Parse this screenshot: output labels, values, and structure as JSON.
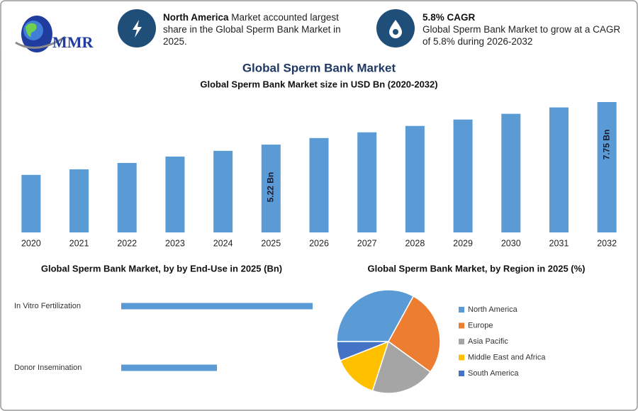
{
  "header": {
    "logo": "MMR",
    "cards": [
      {
        "highlight": "North America",
        "text": "Market accounted largest share in the Global Sperm Bank Market in 2025."
      },
      {
        "highlight": "5.8% CAGR",
        "text": "Global Sperm Bank Market to grow at a CAGR of 5.8% during 2026-2032"
      }
    ]
  },
  "title": "Global Sperm Bank Market",
  "chart_data": [
    {
      "type": "bar",
      "title": "Global Sperm Bank Market size in USD Bn (2020-2032)",
      "categories": [
        "2020",
        "2021",
        "2022",
        "2023",
        "2024",
        "2025",
        "2026",
        "2027",
        "2028",
        "2029",
        "2030",
        "2031",
        "2032"
      ],
      "values": [
        3.42,
        3.75,
        4.13,
        4.51,
        4.85,
        5.22,
        5.61,
        5.95,
        6.33,
        6.71,
        7.05,
        7.43,
        7.75
      ],
      "value_labels": [
        null,
        null,
        null,
        null,
        null,
        "5.22 Bn",
        null,
        null,
        null,
        null,
        null,
        null,
        "7.75 Bn"
      ],
      "color": "#5b9bd5"
    },
    {
      "type": "hbar",
      "title": "Global Sperm Bank Market, by by End-Use in 2025 (Bn)",
      "categories": [
        "In Vitro Fertilization",
        "Donor Insemination"
      ],
      "values": [
        3.48,
        1.74
      ],
      "color": "#5b9bd5"
    },
    {
      "type": "pie",
      "title": "Global Sperm Bank Market, by Region in 2025 (%)",
      "categories": [
        "North America",
        "Europe",
        "Asia Pacific",
        "Middle East and Africa",
        "South America"
      ],
      "values": [
        33,
        27,
        20,
        14,
        6
      ],
      "colors": [
        "#5b9bd5",
        "#ed7d31",
        "#a5a5a5",
        "#ffc000",
        "#4472c4"
      ]
    }
  ]
}
